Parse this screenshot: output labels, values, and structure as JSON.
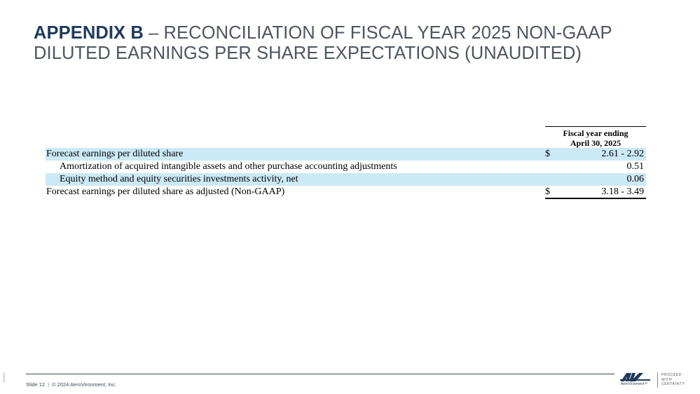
{
  "title": {
    "bold": "APPENDIX B",
    "rest": " – RECONCILIATION OF FISCAL YEAR 2025 NON-GAAP DILUTED EARNINGS PER SHARE EXPECTATIONS (UNAUDITED)"
  },
  "table": {
    "header_line1": "Fiscal year ending",
    "header_line2": "April 30, 2025",
    "rows": [
      {
        "label": "Forecast earnings per diluted share",
        "dollar": "$",
        "value": "2.61 - 2.92"
      },
      {
        "label": "Amortization of acquired intangible assets and other purchase accounting adjustments",
        "dollar": "",
        "value": "0.51"
      },
      {
        "label": "Equity method and equity securities investments activity, net",
        "dollar": "",
        "value": "0.06"
      },
      {
        "label": "Forecast earnings per diluted share as adjusted (Non-GAAP)",
        "dollar": "$",
        "value": "3.18 - 3.49"
      }
    ]
  },
  "footer": {
    "slide": "Slide 12",
    "separator": "|",
    "copyright": "© 2024 AeroVironment, Inc.",
    "side_code": "093823"
  },
  "logo": {
    "sub": "AeroVironment™",
    "tagline": [
      "PROCEED",
      "WITH",
      "CERTAINTY"
    ]
  },
  "colors": {
    "title_bold": "#1f3a5c",
    "title_text": "#4d5560",
    "row_shade": "#cce9f8"
  }
}
